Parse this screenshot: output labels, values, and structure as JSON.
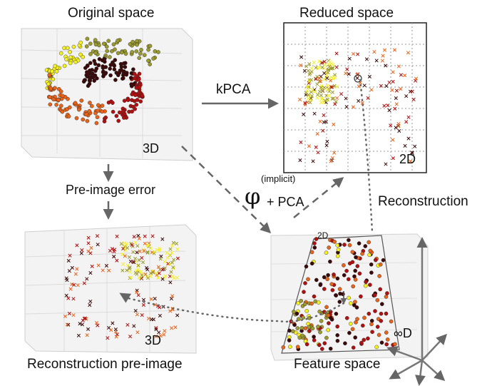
{
  "labels": {
    "original_space": "Original space",
    "reduced_space": "Reduced space",
    "kpca": "kPCA",
    "pre_image_error": "Pre-image error",
    "implicit": "(implicit)",
    "phi": "φ",
    "plus_pca": "+ PCA",
    "reconstruction": "Reconstruction",
    "reconstruction_pre_image": "Reconstruction pre-image",
    "feature_space": "Feature space",
    "dim_3d": "3D",
    "dim_2d": "2D",
    "dim_inf": "∞D"
  },
  "colors": {
    "dark": "#3a0a0a",
    "red": "#b01010",
    "orange": "#e8641a",
    "yellow": "#f5f020",
    "olive": "#9a9a30",
    "arrow": "#666666"
  }
}
